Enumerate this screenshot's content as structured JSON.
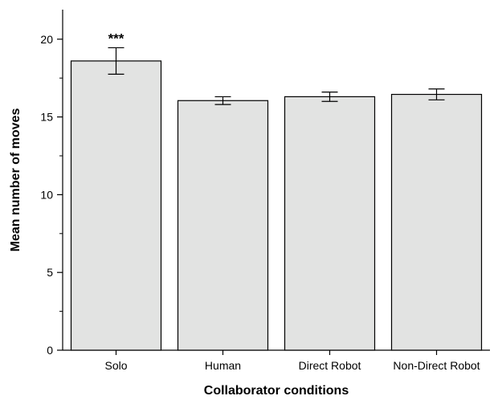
{
  "chart_data": {
    "type": "bar",
    "title": "",
    "xlabel": "Collaborator conditions",
    "ylabel": "Mean number of moves",
    "categories": [
      "Solo",
      "Human",
      "Direct Robot",
      "Non-Direct Robot"
    ],
    "values": [
      18.6,
      16.05,
      16.3,
      16.45
    ],
    "error": [
      0.85,
      0.25,
      0.3,
      0.35
    ],
    "ylim": [
      0,
      21.9
    ],
    "yticks": [
      0,
      5,
      10,
      15,
      20
    ],
    "grid": false,
    "annotations": [
      {
        "category": "Solo",
        "text": "***"
      }
    ],
    "colors": {
      "bar_fill": "#e2e3e2",
      "bar_stroke": "#000000"
    }
  }
}
